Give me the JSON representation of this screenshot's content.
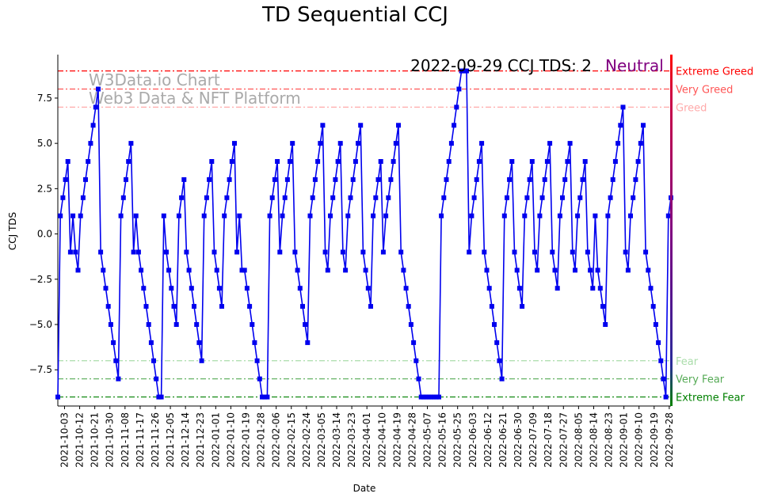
{
  "title": "TD Sequential CCJ",
  "annotation": {
    "date_text": "2022-09-29 CCJ TDS: 2",
    "sentiment": "Neutral",
    "sentiment_color": "#800080"
  },
  "watermark": {
    "line1": "W3Data.io Chart",
    "line2": "Web3 Data & NFT Platform"
  },
  "colors": {
    "line": "#0000ee",
    "marker": "#0000ee"
  },
  "zones": [
    {
      "label": "Extreme Greed",
      "value": 9,
      "color": "#ff0000"
    },
    {
      "label": "Very Greed",
      "value": 8,
      "color": "#ff5555"
    },
    {
      "label": "Greed",
      "value": 7,
      "color": "#ffaaaa"
    },
    {
      "label": "Fear",
      "value": -7,
      "color": "#aaddaa"
    },
    {
      "label": "Very Fear",
      "value": -8,
      "color": "#55aa55"
    },
    {
      "label": "Extreme Fear",
      "value": -9,
      "color": "#008000"
    }
  ],
  "chart_data": {
    "type": "line",
    "title": "TD Sequential CCJ",
    "xlabel": "Date",
    "ylabel": "CCJ TDS",
    "ylim": [
      -9.5,
      9.9
    ],
    "yticks": [
      7.5,
      5.0,
      2.5,
      0.0,
      -2.5,
      -5.0,
      -7.5
    ],
    "ytick_labels": [
      "7.5",
      "5.0",
      "2.5",
      "0.0",
      "−2.5",
      "−5.0",
      "−7.5"
    ],
    "x_start": "2021-09-29",
    "x_end": "2022-09-29",
    "xticks": [
      "2021-10-03",
      "2021-10-12",
      "2021-10-21",
      "2021-10-30",
      "2021-11-08",
      "2021-11-17",
      "2021-11-26",
      "2021-12-05",
      "2021-12-14",
      "2021-12-23",
      "2022-01-01",
      "2022-01-10",
      "2022-01-19",
      "2022-01-28",
      "2022-02-06",
      "2022-02-15",
      "2022-02-24",
      "2022-03-05",
      "2022-03-14",
      "2022-03-23",
      "2022-04-01",
      "2022-04-10",
      "2022-04-19",
      "2022-04-28",
      "2022-05-07",
      "2022-05-16",
      "2022-05-25",
      "2022-06-03",
      "2022-06-12",
      "2022-06-21",
      "2022-06-30",
      "2022-07-09",
      "2022-07-18",
      "2022-07-27",
      "2022-08-05",
      "2022-08-14",
      "2022-08-23",
      "2022-09-01",
      "2022-09-10",
      "2022-09-19",
      "2022-09-28"
    ],
    "series": [
      {
        "values": [
          -9,
          1,
          2,
          3,
          4,
          -1,
          1,
          -1,
          -2,
          1,
          2,
          3,
          4,
          5,
          6,
          7,
          8,
          -1,
          -2,
          -3,
          -4,
          -5,
          -6,
          -7,
          -8,
          1,
          2,
          3,
          4,
          5,
          -1,
          1,
          -1,
          -2,
          -3,
          -4,
          -5,
          -6,
          -7,
          -8,
          -9,
          -9,
          1,
          -1,
          -2,
          -3,
          -4,
          -5,
          1,
          2,
          3,
          -1,
          -2,
          -3,
          -4,
          -5,
          -6,
          -7,
          1,
          2,
          3,
          4,
          -1,
          -2,
          -3,
          -4,
          1,
          2,
          3,
          4,
          5,
          -1,
          1,
          -2,
          -2,
          -3,
          -4,
          -5,
          -6,
          -7,
          -8,
          -9,
          -9,
          -9,
          1,
          2,
          3,
          4,
          -1,
          1,
          2,
          3,
          4,
          5,
          -1,
          -2,
          -3,
          -4,
          -5,
          -6,
          1,
          2,
          3,
          4,
          5,
          6,
          -1,
          -2,
          1,
          2,
          3,
          4,
          5,
          -1,
          -2,
          1,
          2,
          3,
          4,
          5,
          6,
          -1,
          -2,
          -3,
          -4,
          1,
          2,
          3,
          4,
          -1,
          1,
          2,
          3,
          4,
          5,
          6,
          -1,
          -2,
          -3,
          -4,
          -5,
          -6,
          -7,
          -8,
          -9,
          -9,
          -9,
          -9,
          -9,
          -9,
          -9,
          -9,
          1,
          2,
          3,
          4,
          5,
          6,
          7,
          8,
          9,
          9,
          9,
          -1,
          1,
          2,
          3,
          4,
          5,
          -1,
          -2,
          -3,
          -4,
          -5,
          -6,
          -7,
          -8,
          1,
          2,
          3,
          4,
          -1,
          -2,
          -3,
          -4,
          1,
          2,
          3,
          4,
          -1,
          -2,
          1,
          2,
          3,
          4,
          5,
          -1,
          -2,
          -3,
          1,
          2,
          3,
          4,
          5,
          -1,
          -2,
          1,
          2,
          3,
          4,
          -1,
          -2,
          -3,
          1,
          -2,
          -3,
          -4,
          -5,
          1,
          2,
          3,
          4,
          5,
          6,
          7,
          -1,
          -2,
          1,
          2,
          3,
          4,
          5,
          6,
          -1,
          -2,
          -3,
          -4,
          -5,
          -6,
          -7,
          -8,
          -9,
          1,
          2
        ]
      }
    ]
  }
}
